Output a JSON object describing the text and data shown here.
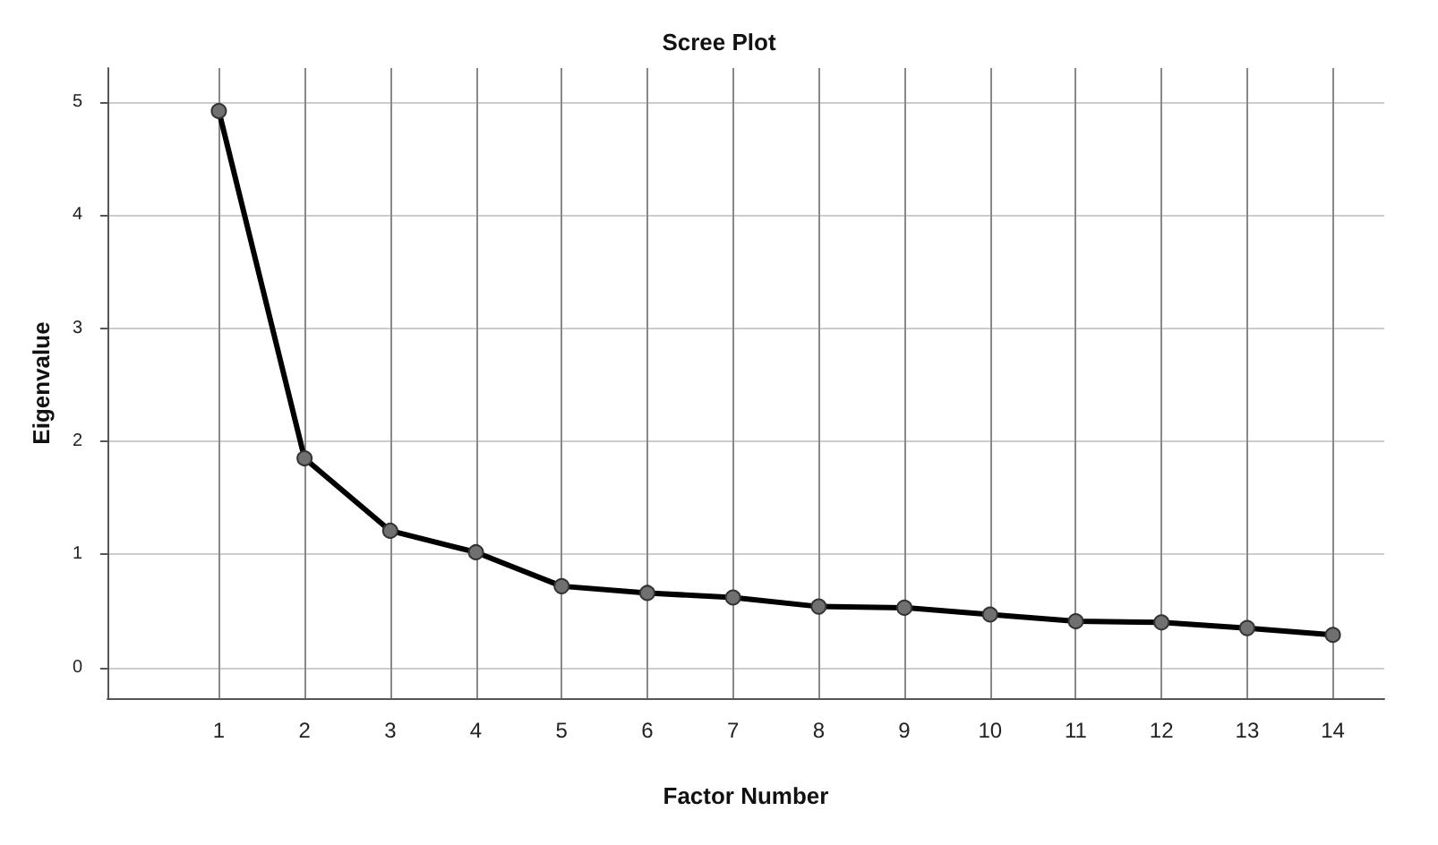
{
  "chart_data": {
    "type": "line",
    "title": "Scree Plot",
    "xlabel": "Factor Number",
    "ylabel": "Eigenvalue",
    "x": [
      1,
      2,
      3,
      4,
      5,
      6,
      7,
      8,
      9,
      10,
      11,
      12,
      13,
      14
    ],
    "series": [
      {
        "color": "#000000",
        "values": [
          4.92,
          1.85,
          1.21,
          1.02,
          0.72,
          0.66,
          0.62,
          0.54,
          0.53,
          0.47,
          0.41,
          0.4,
          0.35,
          0.29
        ]
      }
    ],
    "xlim": [
      -0.3,
      14.6
    ],
    "xticks": [
      1,
      2,
      3,
      4,
      5,
      6,
      7,
      8,
      9,
      10,
      11,
      12,
      13,
      14
    ],
    "ylim": [
      -0.27,
      5.3
    ],
    "yticks": [
      0,
      1,
      2,
      3,
      4,
      5
    ],
    "grid": true,
    "marker": "circle",
    "line_style": "solid"
  }
}
